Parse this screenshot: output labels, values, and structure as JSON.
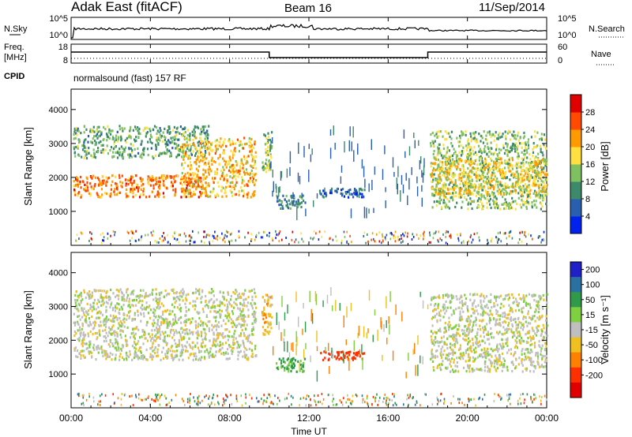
{
  "header": {
    "station": "Adak East (fitACF)",
    "beam": "Beam 16",
    "date": "11/Sep/2014"
  },
  "status_panels": {
    "nsky_label": "N.Sky",
    "nsearch_label": "N.Search",
    "nsky_ticks": [
      "10^5",
      "10^0"
    ],
    "nsearch_ticks": [
      "10^5",
      "10^0"
    ],
    "freq_label": "Freq.",
    "freq_unit": "[MHz]",
    "freq_ticks": [
      "18",
      "8"
    ],
    "nave_label": "Nave",
    "nave_ticks": [
      "60",
      "0"
    ],
    "cpid_label": "CPID",
    "cpid_text": "normalsound (fast) 157 RF"
  },
  "colors": {
    "power": [
      "#0022ee",
      "#2a5fb0",
      "#3c8a6a",
      "#7fc060",
      "#ffe040",
      "#ff9a00",
      "#ff4a00",
      "#e00000"
    ],
    "velocity": [
      "#2020c8",
      "#2a70a0",
      "#2f9a4a",
      "#7fd040",
      "#bfbfbf",
      "#f0c020",
      "#ff8000",
      "#ff3000",
      "#e00000"
    ]
  },
  "chart_data": [
    {
      "type": "heatmap",
      "name": "power",
      "ylabel": "Slant Range [km]",
      "yticks": [
        "4000",
        "3000",
        "2000",
        "1000"
      ],
      "ylim": [
        0,
        4600
      ],
      "xlim": [
        "00:00",
        "24:00"
      ],
      "colorbar_label": "Power [dB]",
      "colorbar_ticks": [
        "28",
        "24",
        "20",
        "16",
        "12",
        "8",
        "4"
      ],
      "colorbar_range": [
        0,
        32
      ],
      "regions": [
        {
          "t0": 0.1,
          "t1": 6.9,
          "r0": 1450,
          "r1": 2100,
          "val": 24
        },
        {
          "t0": 0.1,
          "t1": 6.9,
          "r0": 2600,
          "r1": 3550,
          "val": 12
        },
        {
          "t0": 5.5,
          "t1": 9.3,
          "r0": 1450,
          "r1": 3200,
          "val": 20
        },
        {
          "t0": 9.6,
          "t1": 10.1,
          "r0": 2200,
          "r1": 3400,
          "val": 14
        },
        {
          "t0": 10.3,
          "t1": 11.8,
          "r0": 1100,
          "r1": 1500,
          "val": 9
        },
        {
          "t0": 12.5,
          "t1": 14.8,
          "r0": 1450,
          "r1": 1700,
          "val": 7
        },
        {
          "t0": 18.1,
          "t1": 24.0,
          "r0": 1100,
          "r1": 3400,
          "val": 14
        },
        {
          "t0": 18.1,
          "t1": 24.0,
          "r0": 1500,
          "r1": 2600,
          "val": 19
        }
      ]
    },
    {
      "type": "heatmap",
      "name": "velocity",
      "xlabel": "Time UT",
      "ylabel": "Slant Range [km]",
      "yticks": [
        "4000",
        "3000",
        "2000",
        "1000"
      ],
      "ylim": [
        0,
        4600
      ],
      "xticks": [
        "00:00",
        "04:00",
        "08:00",
        "12:00",
        "16:00",
        "20:00",
        "00:00"
      ],
      "xlim": [
        "00:00",
        "24:00"
      ],
      "colorbar_label": "Velocity [m s⁻¹]",
      "colorbar_ticks": [
        "200",
        "100",
        "50",
        "15",
        "-15",
        "-50",
        "-100",
        "-200"
      ],
      "regions": [
        {
          "t0": 0.1,
          "t1": 9.3,
          "r0": 1450,
          "r1": 3550,
          "val": 0
        },
        {
          "t0": 9.6,
          "t1": 10.1,
          "r0": 2200,
          "r1": 3400,
          "val": -40
        },
        {
          "t0": 10.3,
          "t1": 11.8,
          "r0": 1100,
          "r1": 1500,
          "val": 60
        },
        {
          "t0": 12.5,
          "t1": 14.8,
          "r0": 1450,
          "r1": 1700,
          "val": -150
        },
        {
          "t0": 18.1,
          "t1": 24.0,
          "r0": 1100,
          "r1": 3400,
          "val": 0
        }
      ]
    }
  ]
}
